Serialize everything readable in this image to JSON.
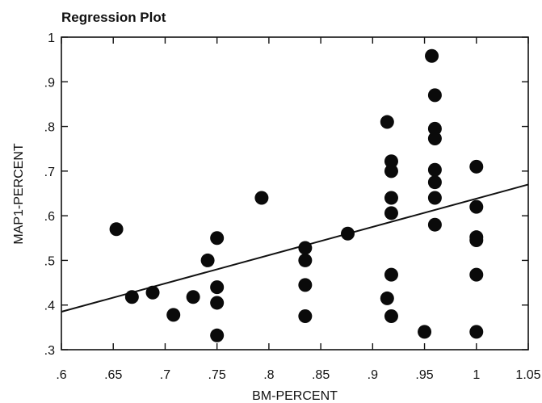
{
  "chart_data": {
    "type": "scatter",
    "title": "Regression Plot",
    "xlabel": "BM-PERCENT",
    "ylabel": "MAP1-PERCENT",
    "xlim": [
      0.6,
      1.05
    ],
    "ylim": [
      0.3,
      1.0
    ],
    "x_ticks": [
      {
        "value": 0.6,
        "label": ".6"
      },
      {
        "value": 0.65,
        "label": ".65"
      },
      {
        "value": 0.7,
        "label": ".7"
      },
      {
        "value": 0.75,
        "label": ".75"
      },
      {
        "value": 0.8,
        "label": ".8"
      },
      {
        "value": 0.85,
        "label": ".85"
      },
      {
        "value": 0.9,
        "label": ".9"
      },
      {
        "value": 0.95,
        "label": ".95"
      },
      {
        "value": 1.0,
        "label": "1"
      },
      {
        "value": 1.05,
        "label": "1.05"
      }
    ],
    "y_ticks": [
      {
        "value": 0.3,
        "label": ".3"
      },
      {
        "value": 0.4,
        "label": ".4"
      },
      {
        "value": 0.5,
        "label": ".5"
      },
      {
        "value": 0.6,
        "label": ".6"
      },
      {
        "value": 0.7,
        "label": ".7"
      },
      {
        "value": 0.8,
        "label": ".8"
      },
      {
        "value": 0.9,
        "label": ".9"
      },
      {
        "value": 1.0,
        "label": "1"
      }
    ],
    "grid": false,
    "points": [
      {
        "x": 0.653,
        "y": 0.57
      },
      {
        "x": 0.668,
        "y": 0.418
      },
      {
        "x": 0.688,
        "y": 0.428
      },
      {
        "x": 0.708,
        "y": 0.378
      },
      {
        "x": 0.727,
        "y": 0.418
      },
      {
        "x": 0.741,
        "y": 0.5
      },
      {
        "x": 0.75,
        "y": 0.55
      },
      {
        "x": 0.75,
        "y": 0.44
      },
      {
        "x": 0.75,
        "y": 0.405
      },
      {
        "x": 0.75,
        "y": 0.332
      },
      {
        "x": 0.793,
        "y": 0.64
      },
      {
        "x": 0.835,
        "y": 0.528
      },
      {
        "x": 0.835,
        "y": 0.5
      },
      {
        "x": 0.835,
        "y": 0.445
      },
      {
        "x": 0.835,
        "y": 0.375
      },
      {
        "x": 0.876,
        "y": 0.56
      },
      {
        "x": 0.914,
        "y": 0.81
      },
      {
        "x": 0.914,
        "y": 0.415
      },
      {
        "x": 0.918,
        "y": 0.722
      },
      {
        "x": 0.918,
        "y": 0.7
      },
      {
        "x": 0.918,
        "y": 0.64
      },
      {
        "x": 0.918,
        "y": 0.606
      },
      {
        "x": 0.918,
        "y": 0.468
      },
      {
        "x": 0.918,
        "y": 0.375
      },
      {
        "x": 0.95,
        "y": 0.34
      },
      {
        "x": 0.957,
        "y": 0.958
      },
      {
        "x": 0.96,
        "y": 0.87
      },
      {
        "x": 0.96,
        "y": 0.795
      },
      {
        "x": 0.96,
        "y": 0.773
      },
      {
        "x": 0.96,
        "y": 0.703
      },
      {
        "x": 0.96,
        "y": 0.675
      },
      {
        "x": 0.96,
        "y": 0.64
      },
      {
        "x": 0.96,
        "y": 0.58
      },
      {
        "x": 1.0,
        "y": 0.71
      },
      {
        "x": 1.0,
        "y": 0.62
      },
      {
        "x": 1.0,
        "y": 0.552
      },
      {
        "x": 1.0,
        "y": 0.545
      },
      {
        "x": 1.0,
        "y": 0.468
      },
      {
        "x": 1.0,
        "y": 0.34
      }
    ],
    "regression_line": {
      "x": [
        0.6,
        1.05
      ],
      "y": [
        0.385,
        0.67
      ]
    },
    "colors": {
      "points": "#0a0a0a",
      "line": "#111111"
    }
  }
}
